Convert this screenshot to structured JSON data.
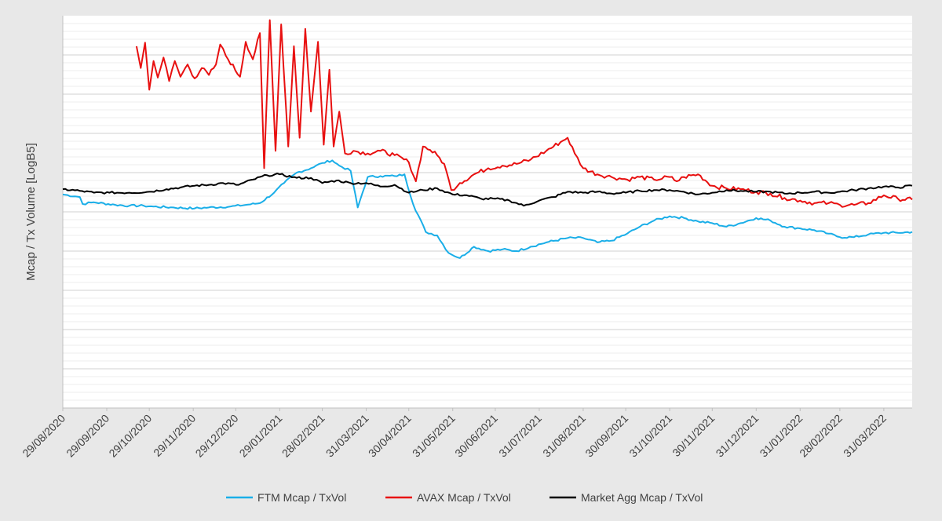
{
  "chart_data": {
    "type": "line",
    "ylabel": "Mcap / Tx Volume [LogB5]",
    "xlabel": "",
    "y_tick_labels_shown": false,
    "grid": true,
    "legend_position": "bottom",
    "ylim": [
      -2.2,
      2.3
    ],
    "x_tick_labels": [
      "29/08/2020",
      "29/09/2020",
      "29/10/2020",
      "29/11/2020",
      "29/12/2020",
      "29/01/2021",
      "28/02/2021",
      "31/03/2021",
      "30/04/2021",
      "31/05/2021",
      "30/06/2021",
      "31/07/2021",
      "31/08/2021",
      "30/09/2021",
      "31/10/2021",
      "30/11/2021",
      "31/12/2021",
      "31/01/2022",
      "28/02/2022",
      "31/03/2022"
    ],
    "x_range": [
      "2020-08-29",
      "2022-04-20"
    ],
    "series": [
      {
        "name": "FTM Mcap / TxVol",
        "color": "#1aaee8",
        "points": [
          [
            "2020-08-29",
            0.25
          ],
          [
            "2020-09-10",
            0.22
          ],
          [
            "2020-09-12",
            0.14
          ],
          [
            "2020-09-20",
            0.16
          ],
          [
            "2020-10-05",
            0.13
          ],
          [
            "2020-10-15",
            0.12
          ],
          [
            "2020-10-25",
            0.12
          ],
          [
            "2020-11-01",
            0.11
          ],
          [
            "2020-11-15",
            0.1
          ],
          [
            "2020-11-30",
            0.09
          ],
          [
            "2020-12-10",
            0.1
          ],
          [
            "2020-12-25",
            0.11
          ],
          [
            "2021-01-05",
            0.13
          ],
          [
            "2021-01-15",
            0.15
          ],
          [
            "2021-01-25",
            0.27
          ],
          [
            "2021-02-01",
            0.38
          ],
          [
            "2021-02-10",
            0.5
          ],
          [
            "2021-02-20",
            0.55
          ],
          [
            "2021-02-28",
            0.61
          ],
          [
            "2021-03-07",
            0.64
          ],
          [
            "2021-03-12",
            0.58
          ],
          [
            "2021-03-20",
            0.52
          ],
          [
            "2021-03-25",
            0.1
          ],
          [
            "2021-04-01",
            0.45
          ],
          [
            "2021-04-10",
            0.46
          ],
          [
            "2021-04-20",
            0.46
          ],
          [
            "2021-04-27",
            0.48
          ],
          [
            "2021-05-03",
            0.14
          ],
          [
            "2021-05-12",
            -0.18
          ],
          [
            "2021-05-20",
            -0.22
          ],
          [
            "2021-05-28",
            -0.42
          ],
          [
            "2021-06-05",
            -0.48
          ],
          [
            "2021-06-15",
            -0.35
          ],
          [
            "2021-06-25",
            -0.4
          ],
          [
            "2021-07-05",
            -0.38
          ],
          [
            "2021-07-15",
            -0.4
          ],
          [
            "2021-07-25",
            -0.35
          ],
          [
            "2021-08-05",
            -0.3
          ],
          [
            "2021-08-20",
            -0.25
          ],
          [
            "2021-08-31",
            -0.25
          ],
          [
            "2021-09-10",
            -0.3
          ],
          [
            "2021-09-20",
            -0.28
          ],
          [
            "2021-10-01",
            -0.2
          ],
          [
            "2021-10-10",
            -0.12
          ],
          [
            "2021-10-20",
            -0.05
          ],
          [
            "2021-10-31",
            0.0
          ],
          [
            "2021-11-10",
            -0.02
          ],
          [
            "2021-11-20",
            -0.06
          ],
          [
            "2021-11-30",
            -0.08
          ],
          [
            "2021-12-10",
            -0.12
          ],
          [
            "2021-12-20",
            -0.08
          ],
          [
            "2021-12-31",
            -0.02
          ],
          [
            "2022-01-10",
            -0.05
          ],
          [
            "2022-01-20",
            -0.12
          ],
          [
            "2022-01-31",
            -0.14
          ],
          [
            "2022-02-10",
            -0.16
          ],
          [
            "2022-02-20",
            -0.2
          ],
          [
            "2022-02-28",
            -0.24
          ],
          [
            "2022-03-10",
            -0.24
          ],
          [
            "2022-03-20",
            -0.21
          ],
          [
            "2022-03-31",
            -0.19
          ],
          [
            "2022-04-10",
            -0.19
          ],
          [
            "2022-04-20",
            -0.18
          ]
        ]
      },
      {
        "name": "AVAX Mcap / TxVol",
        "color": "#e81010",
        "points": [
          [
            "2020-10-20",
            1.95
          ],
          [
            "2020-10-23",
            1.7
          ],
          [
            "2020-10-26",
            1.99
          ],
          [
            "2020-10-29",
            1.45
          ],
          [
            "2020-11-01",
            1.78
          ],
          [
            "2020-11-04",
            1.59
          ],
          [
            "2020-11-08",
            1.82
          ],
          [
            "2020-11-12",
            1.55
          ],
          [
            "2020-11-16",
            1.78
          ],
          [
            "2020-11-20",
            1.6
          ],
          [
            "2020-11-25",
            1.74
          ],
          [
            "2020-11-30",
            1.58
          ],
          [
            "2020-12-05",
            1.7
          ],
          [
            "2020-12-10",
            1.62
          ],
          [
            "2020-12-15",
            1.74
          ],
          [
            "2020-12-18",
            1.97
          ],
          [
            "2020-12-22",
            1.84
          ],
          [
            "2021-01-01",
            1.6
          ],
          [
            "2021-01-05",
            2.0
          ],
          [
            "2021-01-10",
            1.8
          ],
          [
            "2021-01-15",
            2.1
          ],
          [
            "2021-01-18",
            0.55
          ],
          [
            "2021-01-22",
            2.25
          ],
          [
            "2021-01-26",
            0.75
          ],
          [
            "2021-01-30",
            2.2
          ],
          [
            "2021-02-04",
            0.8
          ],
          [
            "2021-02-08",
            1.95
          ],
          [
            "2021-02-12",
            0.9
          ],
          [
            "2021-02-16",
            2.15
          ],
          [
            "2021-02-20",
            1.2
          ],
          [
            "2021-02-25",
            2.0
          ],
          [
            "2021-03-01",
            0.82
          ],
          [
            "2021-03-05",
            1.68
          ],
          [
            "2021-03-08",
            0.8
          ],
          [
            "2021-03-12",
            1.2
          ],
          [
            "2021-03-16",
            0.72
          ],
          [
            "2021-03-22",
            0.75
          ],
          [
            "2021-04-01",
            0.72
          ],
          [
            "2021-04-10",
            0.75
          ],
          [
            "2021-04-20",
            0.7
          ],
          [
            "2021-04-30",
            0.62
          ],
          [
            "2021-05-05",
            0.4
          ],
          [
            "2021-05-10",
            0.8
          ],
          [
            "2021-05-15",
            0.76
          ],
          [
            "2021-05-20",
            0.7
          ],
          [
            "2021-05-25",
            0.6
          ],
          [
            "2021-05-30",
            0.3
          ],
          [
            "2021-06-05",
            0.38
          ],
          [
            "2021-06-15",
            0.48
          ],
          [
            "2021-06-25",
            0.55
          ],
          [
            "2021-07-05",
            0.58
          ],
          [
            "2021-07-15",
            0.6
          ],
          [
            "2021-07-25",
            0.65
          ],
          [
            "2021-08-05",
            0.75
          ],
          [
            "2021-08-15",
            0.85
          ],
          [
            "2021-08-20",
            0.9
          ],
          [
            "2021-08-25",
            0.72
          ],
          [
            "2021-08-31",
            0.55
          ],
          [
            "2021-09-10",
            0.48
          ],
          [
            "2021-09-20",
            0.45
          ],
          [
            "2021-10-01",
            0.42
          ],
          [
            "2021-10-10",
            0.45
          ],
          [
            "2021-10-20",
            0.42
          ],
          [
            "2021-10-31",
            0.45
          ],
          [
            "2021-11-05",
            0.4
          ],
          [
            "2021-11-10",
            0.45
          ],
          [
            "2021-11-20",
            0.48
          ],
          [
            "2021-11-30",
            0.35
          ],
          [
            "2021-12-10",
            0.32
          ],
          [
            "2021-12-20",
            0.31
          ],
          [
            "2021-12-31",
            0.28
          ],
          [
            "2022-01-10",
            0.26
          ],
          [
            "2022-01-20",
            0.21
          ],
          [
            "2022-01-31",
            0.18
          ],
          [
            "2022-02-10",
            0.15
          ],
          [
            "2022-02-20",
            0.15
          ],
          [
            "2022-02-28",
            0.13
          ],
          [
            "2022-03-10",
            0.13
          ],
          [
            "2022-03-20",
            0.15
          ],
          [
            "2022-03-31",
            0.24
          ],
          [
            "2022-04-10",
            0.2
          ],
          [
            "2022-04-20",
            0.19
          ]
        ]
      },
      {
        "name": "Market Agg Mcap / TxVol",
        "color": "#000000",
        "points": [
          [
            "2020-08-29",
            0.31
          ],
          [
            "2020-09-10",
            0.29
          ],
          [
            "2020-09-20",
            0.27
          ],
          [
            "2020-10-01",
            0.27
          ],
          [
            "2020-10-15",
            0.27
          ],
          [
            "2020-10-29",
            0.28
          ],
          [
            "2020-11-10",
            0.31
          ],
          [
            "2020-11-20",
            0.33
          ],
          [
            "2020-11-30",
            0.35
          ],
          [
            "2020-12-10",
            0.36
          ],
          [
            "2020-12-20",
            0.38
          ],
          [
            "2020-12-31",
            0.36
          ],
          [
            "2021-01-10",
            0.42
          ],
          [
            "2021-01-20",
            0.47
          ],
          [
            "2021-01-29",
            0.48
          ],
          [
            "2021-02-10",
            0.44
          ],
          [
            "2021-02-20",
            0.44
          ],
          [
            "2021-02-28",
            0.38
          ],
          [
            "2021-03-10",
            0.41
          ],
          [
            "2021-03-20",
            0.38
          ],
          [
            "2021-03-31",
            0.38
          ],
          [
            "2021-04-10",
            0.34
          ],
          [
            "2021-04-20",
            0.36
          ],
          [
            "2021-04-30",
            0.27
          ],
          [
            "2021-05-10",
            0.3
          ],
          [
            "2021-05-20",
            0.32
          ],
          [
            "2021-05-31",
            0.25
          ],
          [
            "2021-06-10",
            0.24
          ],
          [
            "2021-06-20",
            0.2
          ],
          [
            "2021-06-30",
            0.2
          ],
          [
            "2021-07-10",
            0.18
          ],
          [
            "2021-07-20",
            0.12
          ],
          [
            "2021-07-31",
            0.18
          ],
          [
            "2021-08-10",
            0.22
          ],
          [
            "2021-08-20",
            0.28
          ],
          [
            "2021-08-31",
            0.27
          ],
          [
            "2021-09-10",
            0.28
          ],
          [
            "2021-09-20",
            0.26
          ],
          [
            "2021-09-30",
            0.27
          ],
          [
            "2021-10-10",
            0.29
          ],
          [
            "2021-10-20",
            0.3
          ],
          [
            "2021-10-31",
            0.3
          ],
          [
            "2021-11-10",
            0.28
          ],
          [
            "2021-11-20",
            0.25
          ],
          [
            "2021-11-30",
            0.27
          ],
          [
            "2021-12-10",
            0.3
          ],
          [
            "2021-12-20",
            0.29
          ],
          [
            "2021-12-31",
            0.28
          ],
          [
            "2022-01-10",
            0.28
          ],
          [
            "2022-01-20",
            0.26
          ],
          [
            "2022-01-31",
            0.27
          ],
          [
            "2022-02-10",
            0.28
          ],
          [
            "2022-02-20",
            0.27
          ],
          [
            "2022-02-28",
            0.28
          ],
          [
            "2022-03-10",
            0.3
          ],
          [
            "2022-03-20",
            0.32
          ],
          [
            "2022-03-31",
            0.34
          ],
          [
            "2022-04-10",
            0.33
          ],
          [
            "2022-04-20",
            0.35
          ]
        ]
      }
    ]
  }
}
